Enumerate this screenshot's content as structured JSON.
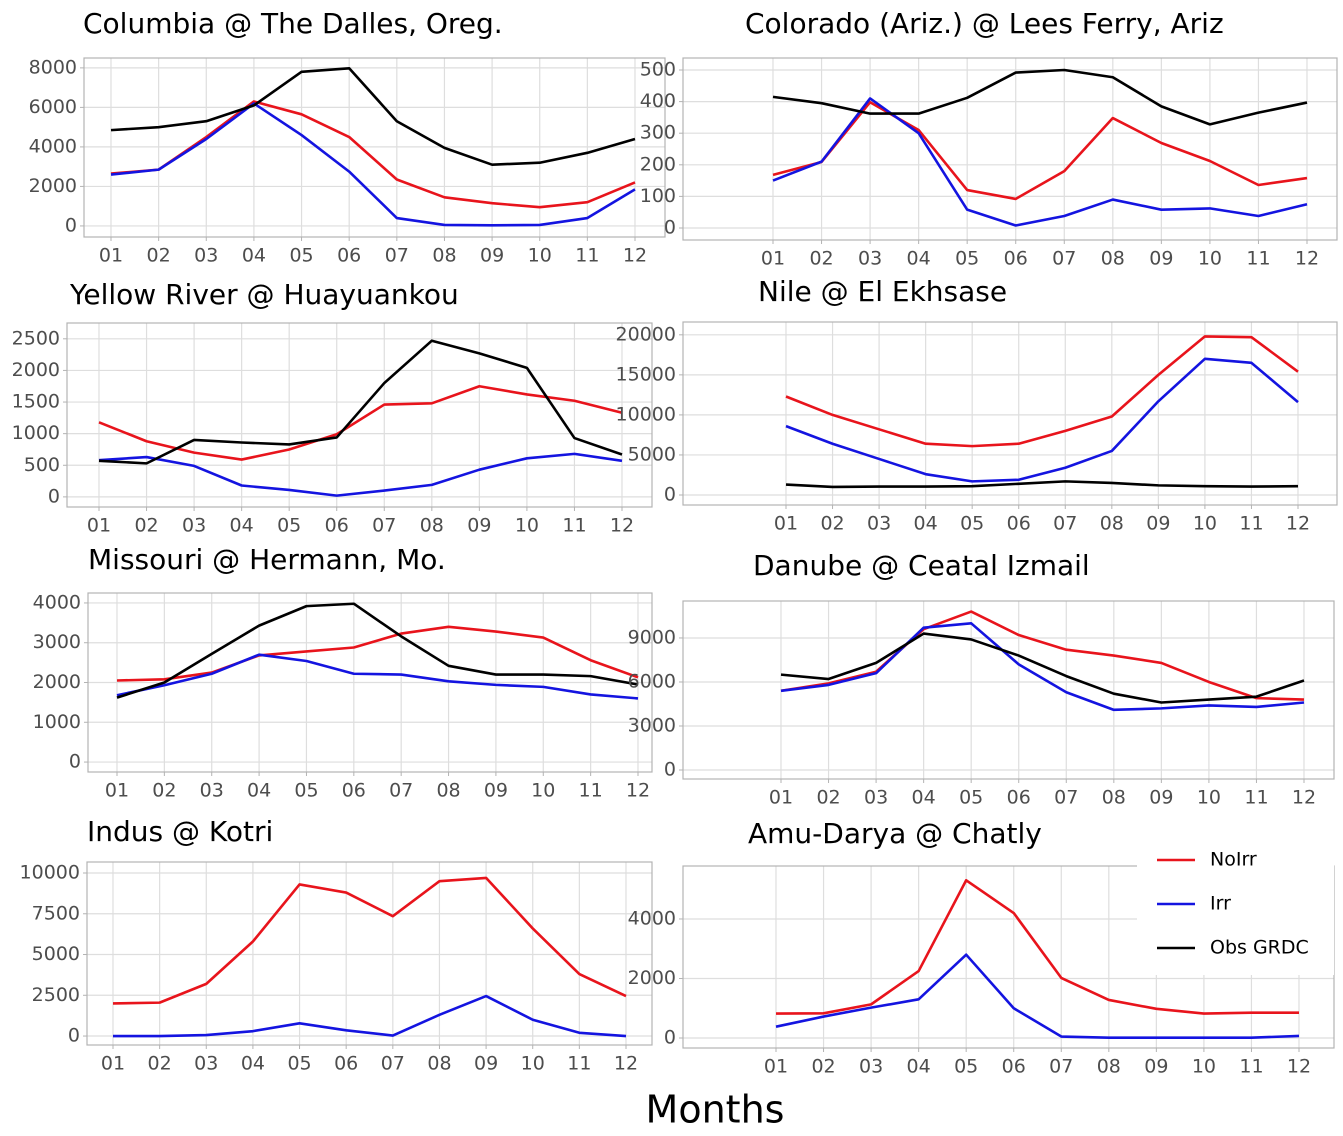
{
  "xlabel": "Months",
  "chart_data": [
    {
      "type": "line",
      "title": "Columbia @ The Dalles, Oreg.",
      "categories": [
        "01",
        "02",
        "03",
        "04",
        "05",
        "06",
        "07",
        "08",
        "09",
        "10",
        "11",
        "12"
      ],
      "series": [
        {
          "name": "NoIrr",
          "color": "#e8141c",
          "values": [
            2650,
            2850,
            4500,
            6300,
            5650,
            4500,
            2350,
            1450,
            1150,
            950,
            1200,
            2200
          ]
        },
        {
          "name": "Irr",
          "color": "#1414e0",
          "values": [
            2600,
            2850,
            4400,
            6200,
            4600,
            2750,
            400,
            50,
            30,
            50,
            400,
            1850
          ]
        },
        {
          "name": "Obs GRDC",
          "color": "#000000",
          "values": [
            4850,
            5000,
            5300,
            6100,
            7800,
            7980,
            5300,
            3950,
            3100,
            3200,
            3700,
            4400
          ]
        }
      ],
      "ylim": [
        -560,
        8500
      ],
      "yticks": [
        0,
        2000,
        4000,
        6000,
        8000
      ],
      "grid": true
    },
    {
      "type": "line",
      "title": "Colorado (Ariz.) @ Lees Ferry, Ariz",
      "categories": [
        "01",
        "02",
        "03",
        "04",
        "05",
        "06",
        "07",
        "08",
        "09",
        "10",
        "11",
        "12"
      ],
      "series": [
        {
          "name": "NoIrr",
          "color": "#e8141c",
          "values": [
            168,
            209,
            398,
            310,
            120,
            92,
            180,
            348,
            269,
            212,
            136,
            158
          ]
        },
        {
          "name": "Irr",
          "color": "#1414e0",
          "values": [
            150,
            210,
            410,
            300,
            58,
            8,
            38,
            90,
            58,
            62,
            38,
            75
          ]
        },
        {
          "name": "Obs GRDC",
          "color": "#000000",
          "values": [
            415,
            395,
            362,
            362,
            412,
            492,
            500,
            477,
            385,
            328,
            365,
            397
          ]
        }
      ],
      "ylim": [
        -38,
        538
      ],
      "yticks": [
        0,
        100,
        200,
        300,
        400,
        500
      ],
      "grid": true
    },
    {
      "type": "line",
      "title": "Yellow River @ Huayuankou",
      "categories": [
        "01",
        "02",
        "03",
        "04",
        "05",
        "06",
        "07",
        "08",
        "09",
        "10",
        "11",
        "12"
      ],
      "series": [
        {
          "name": "NoIrr",
          "color": "#e8141c",
          "values": [
            1180,
            880,
            700,
            590,
            750,
            990,
            1460,
            1480,
            1750,
            1620,
            1520,
            1330
          ]
        },
        {
          "name": "Irr",
          "color": "#1414e0",
          "values": [
            580,
            630,
            490,
            180,
            110,
            20,
            100,
            190,
            430,
            610,
            680,
            570
          ]
        },
        {
          "name": "Obs GRDC",
          "color": "#000000",
          "values": [
            570,
            530,
            900,
            860,
            830,
            940,
            1800,
            2470,
            2270,
            2040,
            930,
            670
          ]
        }
      ],
      "ylim": [
        -160,
        2750
      ],
      "yticks": [
        0,
        500,
        1000,
        1500,
        2000,
        2500
      ],
      "grid": true
    },
    {
      "type": "line",
      "title": "Nile @ El Ekhsase",
      "categories": [
        "01",
        "02",
        "03",
        "04",
        "05",
        "06",
        "07",
        "08",
        "09",
        "10",
        "11",
        "12"
      ],
      "series": [
        {
          "name": "NoIrr",
          "color": "#e8141c",
          "values": [
            12300,
            10000,
            8200,
            6400,
            6100,
            6400,
            8000,
            9800,
            15000,
            19800,
            19700,
            15400
          ]
        },
        {
          "name": "Irr",
          "color": "#1414e0",
          "values": [
            8600,
            6400,
            4500,
            2600,
            1700,
            1900,
            3400,
            5500,
            11700,
            17000,
            16500,
            11600
          ]
        },
        {
          "name": "Obs GRDC",
          "color": "#000000",
          "values": [
            1300,
            1000,
            1050,
            1050,
            1100,
            1400,
            1700,
            1500,
            1200,
            1100,
            1050,
            1100
          ]
        }
      ],
      "ylim": [
        -1250,
        21600
      ],
      "yticks": [
        0,
        5000,
        10000,
        15000,
        20000
      ],
      "grid": true
    },
    {
      "type": "line",
      "title": "Missouri @ Hermann, Mo.",
      "categories": [
        "01",
        "02",
        "03",
        "04",
        "05",
        "06",
        "07",
        "08",
        "09",
        "10",
        "11",
        "12"
      ],
      "series": [
        {
          "name": "NoIrr",
          "color": "#e8141c",
          "values": [
            2050,
            2080,
            2250,
            2680,
            2780,
            2880,
            3230,
            3400,
            3280,
            3130,
            2560,
            2130
          ]
        },
        {
          "name": "Irr",
          "color": "#1414e0",
          "values": [
            1680,
            1930,
            2220,
            2700,
            2540,
            2220,
            2200,
            2030,
            1940,
            1890,
            1700,
            1600
          ]
        },
        {
          "name": "Obs GRDC",
          "color": "#000000",
          "values": [
            1620,
            2000,
            2720,
            3430,
            3920,
            3980,
            3160,
            2420,
            2200,
            2200,
            2160,
            1950
          ]
        }
      ],
      "ylim": [
        -250,
        4250
      ],
      "yticks": [
        0,
        1000,
        2000,
        3000,
        4000
      ],
      "grid": true
    },
    {
      "type": "line",
      "title": "Danube @ Ceatal Izmail",
      "categories": [
        "01",
        "02",
        "03",
        "04",
        "05",
        "06",
        "07",
        "08",
        "09",
        "10",
        "11",
        "12"
      ],
      "series": [
        {
          "name": "NoIrr",
          "color": "#e8141c",
          "values": [
            5400,
            5900,
            6700,
            9600,
            10800,
            9200,
            8200,
            7800,
            7300,
            6000,
            4900,
            4800
          ]
        },
        {
          "name": "Irr",
          "color": "#1414e0",
          "values": [
            5400,
            5800,
            6600,
            9700,
            10000,
            7200,
            5300,
            4100,
            4200,
            4400,
            4300,
            4600
          ]
        },
        {
          "name": "Obs GRDC",
          "color": "#000000",
          "values": [
            6500,
            6200,
            7300,
            9300,
            8900,
            7800,
            6400,
            5200,
            4600,
            4800,
            5000,
            6100
          ]
        }
      ],
      "ylim": [
        -614,
        11520
      ],
      "yticks": [
        0,
        3000,
        6000,
        9000
      ],
      "grid": true
    },
    {
      "type": "line",
      "title": "Indus @ Kotri",
      "categories": [
        "01",
        "02",
        "03",
        "04",
        "05",
        "06",
        "07",
        "08",
        "09",
        "10",
        "11",
        "12"
      ],
      "series": [
        {
          "name": "NoIrr",
          "color": "#e8141c",
          "values": [
            2000,
            2050,
            3200,
            5800,
            9300,
            8800,
            7350,
            9500,
            9700,
            6600,
            3800,
            2450
          ]
        },
        {
          "name": "Irr",
          "color": "#1414e0",
          "values": [
            0,
            0,
            60,
            300,
            780,
            350,
            30,
            1300,
            2450,
            1000,
            200,
            0
          ]
        }
      ],
      "ylim": [
        -550,
        10675
      ],
      "yticks": [
        0,
        2500,
        5000,
        7500,
        10000
      ],
      "grid": true
    },
    {
      "type": "line",
      "title": "Amu-Darya @ Chatly",
      "categories": [
        "01",
        "02",
        "03",
        "04",
        "05",
        "06",
        "07",
        "08",
        "09",
        "10",
        "11",
        "12"
      ],
      "series": [
        {
          "name": "NoIrr",
          "color": "#e8141c",
          "values": [
            820,
            830,
            1130,
            2250,
            5300,
            4200,
            2020,
            1280,
            980,
            820,
            850,
            850
          ]
        },
        {
          "name": "Irr",
          "color": "#1414e0",
          "values": [
            380,
            720,
            1020,
            1300,
            2800,
            1000,
            50,
            10,
            10,
            10,
            10,
            70
          ]
        }
      ],
      "ylim": [
        -336,
        5780
      ],
      "yticks": [
        0,
        2000,
        4000
      ],
      "grid": true
    }
  ]
}
